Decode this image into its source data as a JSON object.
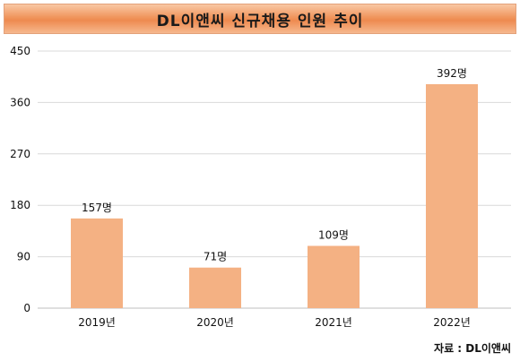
{
  "header": {
    "title": "DL이앤씨 신규채용 인원 추이"
  },
  "footer": {
    "source": "자료 : DL이앤씨"
  },
  "chart_data": {
    "type": "bar",
    "title": "DL이앤씨 신규채용 인원 추이",
    "categories": [
      "2019년",
      "2020년",
      "2021년",
      "2022년"
    ],
    "values": [
      157,
      71,
      109,
      392
    ],
    "data_labels": [
      "157명",
      "71명",
      "109명",
      "392명"
    ],
    "ylim": [
      0,
      450
    ],
    "yticks": [
      0,
      90,
      180,
      270,
      360,
      450
    ],
    "xlabel": "",
    "ylabel": "",
    "grid": true,
    "bar_color": "#f4b183",
    "title_color": "#ee8a4f"
  }
}
